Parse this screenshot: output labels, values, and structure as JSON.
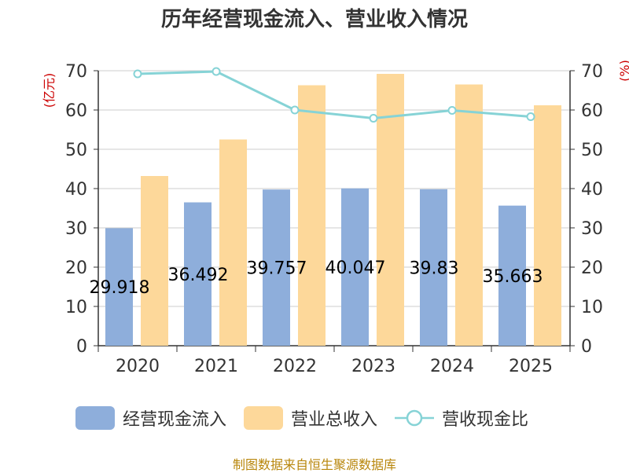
{
  "chart_data": {
    "type": "bar",
    "title": "历年经营现金流入、营业收入情况",
    "categories": [
      "2020",
      "2021",
      "2022",
      "2023",
      "2024",
      "2025"
    ],
    "series": [
      {
        "name": "经营现金流入",
        "kind": "bar",
        "color": "#8eaedb",
        "values": [
          29.918,
          36.492,
          39.757,
          40.047,
          39.83,
          35.663
        ]
      },
      {
        "name": "营业总收入",
        "kind": "bar",
        "color": "#fdd89a",
        "values": [
          43.2,
          52.5,
          66.3,
          69.2,
          66.5,
          61.2
        ]
      },
      {
        "name": "营收现金比",
        "kind": "line",
        "axis": "right",
        "color": "#86d3d6",
        "values": [
          69.2,
          69.8,
          60.0,
          57.9,
          59.9,
          58.3
        ]
      }
    ],
    "data_labels": [
      "29.918",
      "36.492",
      "39.757",
      "40.047",
      "39.83",
      "35.663"
    ],
    "ylabel_left": "(亿元)",
    "ylabel_right": "(%)",
    "ylim_left": [
      0,
      70
    ],
    "ylim_right": [
      0,
      70
    ],
    "yticks": [
      0,
      10,
      20,
      30,
      40,
      50,
      60,
      70
    ],
    "grid": true,
    "legend_position": "bottom"
  },
  "legend": {
    "cash_inflow": "经营现金流入",
    "revenue": "营业总收入",
    "ratio": "营收现金比"
  },
  "source": "制图数据来自恒生聚源数据库"
}
